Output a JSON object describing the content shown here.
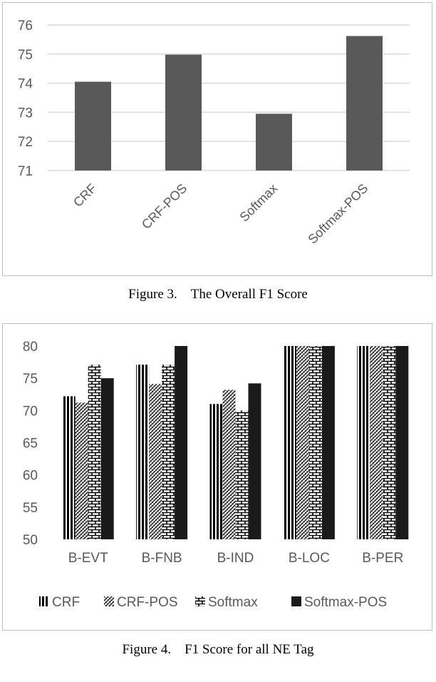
{
  "figures": [
    {
      "caption": "Figure 3. The Overall F1 Score"
    },
    {
      "caption": "Figure 4. F1 Score for all NE Tag"
    }
  ],
  "chart_data": [
    {
      "type": "bar",
      "categories": [
        "CRF",
        "CRF-POS",
        "Softmax",
        "Softmax-POS"
      ],
      "values": [
        74.05,
        74.98,
        72.95,
        75.62
      ],
      "ylim": [
        71,
        76
      ],
      "yticks": [
        71,
        72,
        73,
        74,
        75,
        76
      ],
      "grid": true,
      "colors": {
        "bar": "#595959",
        "grid": "#d9d9d9"
      }
    },
    {
      "type": "bar",
      "categories": [
        "B-EVT",
        "B-FNB",
        "B-IND",
        "B-LOC",
        "B-PER"
      ],
      "series": [
        {
          "name": "CRF",
          "pattern": "vertical-stripes",
          "values": [
            72.2,
            77.1,
            71.0,
            80,
            80
          ]
        },
        {
          "name": "CRF-POS",
          "pattern": "diagonal-hatch",
          "values": [
            71.2,
            74.1,
            73.2,
            80,
            80
          ]
        },
        {
          "name": "Softmax",
          "pattern": "brick",
          "values": [
            77.1,
            77.1,
            70.0,
            80,
            80
          ]
        },
        {
          "name": "Softmax-POS",
          "pattern": "solid",
          "values": [
            75.0,
            80,
            74.2,
            80,
            80
          ]
        }
      ],
      "ylim": [
        50,
        80
      ],
      "yticks": [
        50,
        55,
        60,
        65,
        70,
        75,
        80
      ],
      "grid": true,
      "legend": "bottom",
      "colors": {
        "bar": "#1a1a1a"
      }
    }
  ]
}
